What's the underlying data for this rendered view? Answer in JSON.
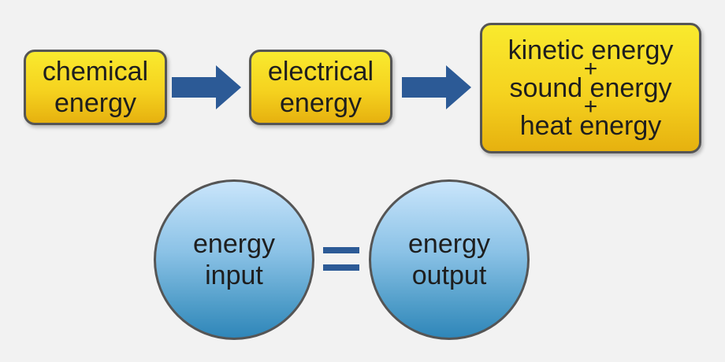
{
  "flow": {
    "chemical": [
      "chemical",
      "energy"
    ],
    "electrical": [
      "electrical",
      "energy"
    ],
    "outputs": {
      "kinetic": "kinetic energy",
      "plus1": "+",
      "sound": "sound energy",
      "plus2": "+",
      "heat": "heat energy"
    }
  },
  "balance": {
    "input": [
      "energy",
      "input"
    ],
    "equals": "=",
    "output": [
      "energy",
      "output"
    ]
  },
  "colors": {
    "box_fill": "#f5d21f",
    "arrow": "#2c5a96",
    "circle_fill": "#6fb0da",
    "border": "#555555"
  }
}
